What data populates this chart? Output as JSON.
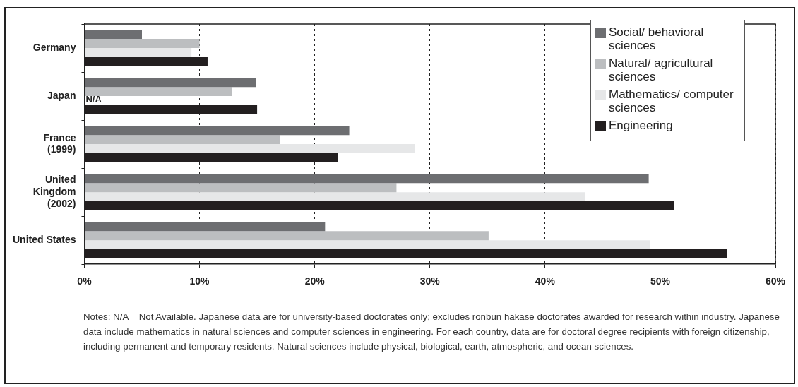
{
  "chart_data": {
    "type": "bar",
    "orientation": "horizontal",
    "categories": [
      "Germany",
      "Japan",
      "France\n(1999)",
      "United\nKingdom\n(2002)",
      "United States"
    ],
    "series": [
      {
        "name": "Social/ behavioral sciences",
        "color": "#6d6e71",
        "values": [
          5.0,
          14.9,
          23.0,
          49.0,
          20.9
        ]
      },
      {
        "name": "Natural/ agricultural sciences",
        "color": "#bcbec0",
        "values": [
          10.0,
          12.8,
          17.0,
          27.1,
          35.1
        ]
      },
      {
        "name": "Mathematics/ computer sciences",
        "color": "#e6e7e8",
        "values": [
          9.3,
          null,
          28.7,
          43.5,
          49.1
        ]
      },
      {
        "name": "Engineering",
        "color": "#231f20",
        "values": [
          10.7,
          15.0,
          22.0,
          51.2,
          55.8
        ]
      }
    ],
    "xlim": [
      0,
      60
    ],
    "xticks": [
      {
        "value": 0,
        "label": "0%"
      },
      {
        "value": 10,
        "label": "10%"
      },
      {
        "value": 20,
        "label": "20%"
      },
      {
        "value": 30,
        "label": "30%"
      },
      {
        "value": 40,
        "label": "40%"
      },
      {
        "value": 50,
        "label": "50%"
      },
      {
        "value": 60,
        "label": "60%"
      }
    ],
    "grid": "x",
    "legend": "top right",
    "annotations": [
      {
        "text": "N/A",
        "x": 0,
        "y": "Japan"
      },
      "Notes: N/A = Not Available.  Japanese data are for university-based doctorates only; excludes ronbun hakase doctorates awarded for research within industry. Japanese data include mathematics in natural sciences and computer sciences in engineering. For each country, data are for doctoral degree recipients with foreign citizenship, including permanent and temporary residents. Natural sciences include physical, biological, earth, atmospheric, and ocean sciences."
    ]
  }
}
